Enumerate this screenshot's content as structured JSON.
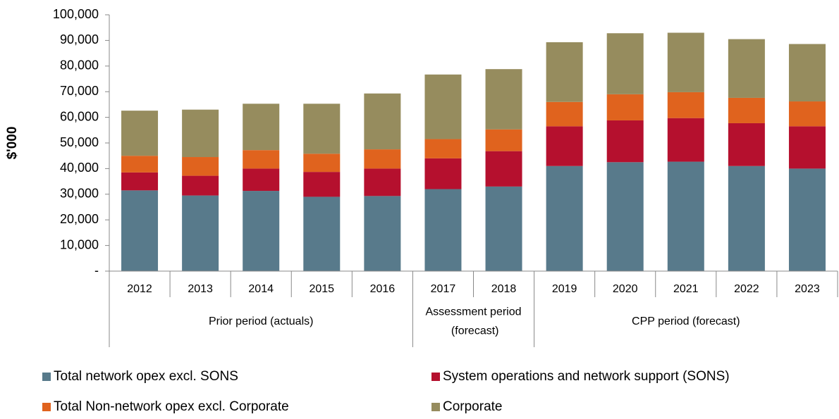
{
  "chart_data": {
    "type": "stacked_bar",
    "y_axis_label": "$'000",
    "categories": [
      "2012",
      "2013",
      "2014",
      "2015",
      "2016",
      "2017",
      "2018",
      "2019",
      "2020",
      "2021",
      "2022",
      "2023"
    ],
    "groups": [
      {
        "label": "Prior period (actuals)",
        "span": 5
      },
      {
        "label": "Assessment period (forecast)",
        "span": 2
      },
      {
        "label": "CPP period (forecast)",
        "span": 5
      }
    ],
    "series": [
      {
        "name": "Total network opex excl. SONS",
        "color": "#587a8b",
        "values": [
          31500,
          29500,
          31300,
          29000,
          29300,
          32000,
          33000,
          41000,
          42500,
          42700,
          41000,
          40000
        ]
      },
      {
        "name": "System operations and network support (SONS)",
        "color": "#b5102e",
        "values": [
          7000,
          7700,
          8700,
          9700,
          10700,
          12000,
          13800,
          15500,
          16300,
          17000,
          16700,
          16500
        ]
      },
      {
        "name": "Total Non-network opex excl. Corporate",
        "color": "#e0631e",
        "values": [
          6500,
          7300,
          7200,
          7100,
          7500,
          7500,
          8500,
          9500,
          10200,
          10100,
          9900,
          9700
        ]
      },
      {
        "name": "Corporate",
        "color": "#968c5e",
        "values": [
          17600,
          18500,
          18100,
          19500,
          21800,
          25200,
          23500,
          23300,
          23800,
          23200,
          22900,
          22400
        ]
      }
    ],
    "ylim": [
      0,
      100000
    ],
    "yticks": [
      {
        "value": 0,
        "label": "-"
      },
      {
        "value": 10000,
        "label": "10,000"
      },
      {
        "value": 20000,
        "label": "20,000"
      },
      {
        "value": 30000,
        "label": "30,000"
      },
      {
        "value": 40000,
        "label": "40,000"
      },
      {
        "value": 50000,
        "label": "50,000"
      },
      {
        "value": 60000,
        "label": "60,000"
      },
      {
        "value": 70000,
        "label": "70,000"
      },
      {
        "value": 80000,
        "label": "80,000"
      },
      {
        "value": 90000,
        "label": "90,000"
      },
      {
        "value": 100000,
        "label": "100,000"
      }
    ],
    "legend": "bottom"
  }
}
